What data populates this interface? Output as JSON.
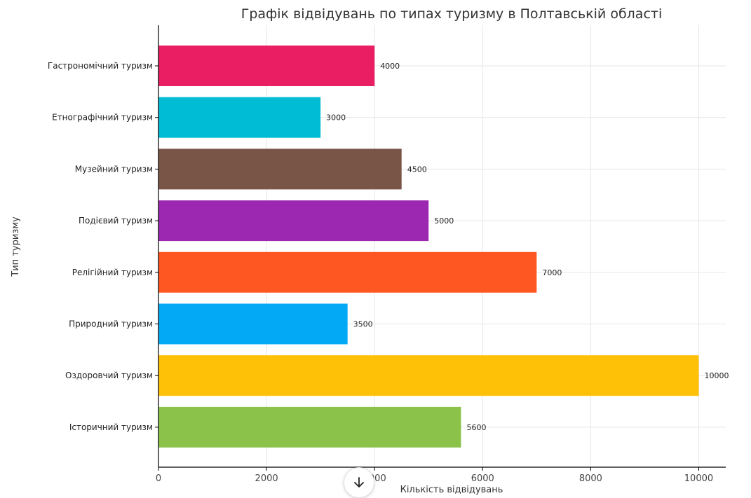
{
  "chart_data": {
    "type": "bar",
    "orientation": "horizontal",
    "title": "Графік відвідувань по типах туризму в Полтавській області",
    "xlabel": "Кількість відвідувань",
    "ylabel": "Тип туризму",
    "xlim": [
      0,
      10500
    ],
    "xticks": [
      0,
      2000,
      4000,
      6000,
      8000,
      10000
    ],
    "tick_labels": [
      "0",
      "2000",
      "4000",
      "6000",
      "8000",
      "10000"
    ],
    "grid": true,
    "categories": [
      "Гастрономічний туризм",
      "Етнографічний туризм",
      "Музейний туризм",
      "Подієвий туризм",
      "Релігійний туризм",
      "Природний туризм",
      "Оздоровчий туризм",
      "Історичний туризм"
    ],
    "values": [
      4000,
      3000,
      4500,
      5000,
      7000,
      3500,
      10000,
      5600
    ],
    "data_labels": [
      "4000",
      "3000",
      "4500",
      "5000",
      "7000",
      "3500",
      "10000",
      "5600"
    ],
    "colors": [
      "#e91e63",
      "#00bcd4",
      "#795548",
      "#9c27b0",
      "#ff5722",
      "#03a9f4",
      "#ffc107",
      "#8bc34a"
    ]
  },
  "scroll_button": {
    "icon": "arrow-down-icon"
  }
}
